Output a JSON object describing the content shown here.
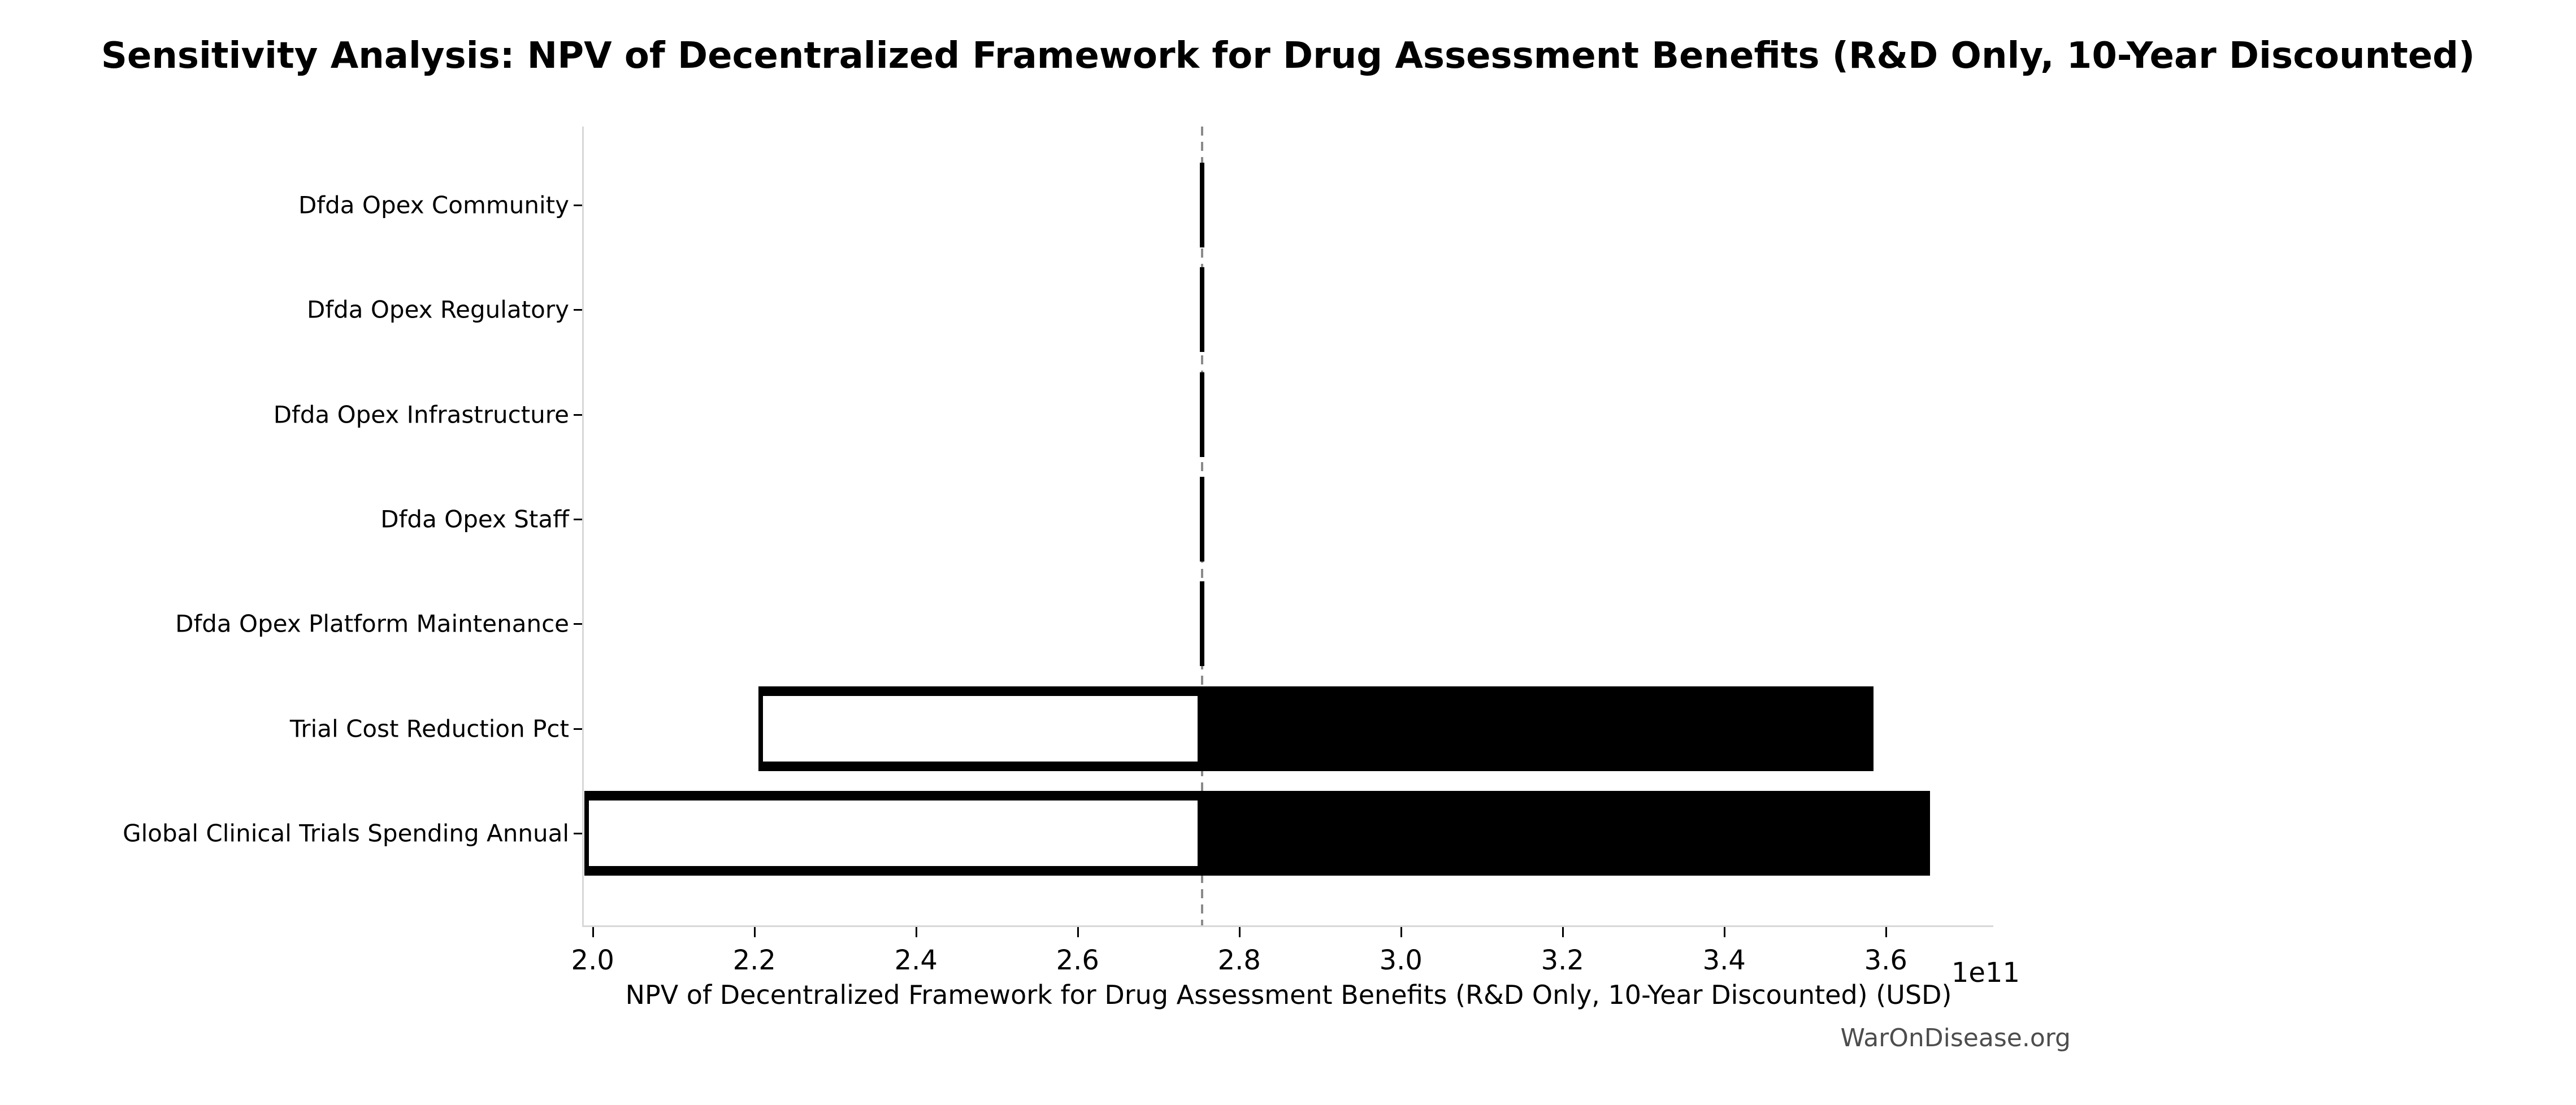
{
  "title": "Sensitivity Analysis: NPV of Decentralized Framework for Drug Assessment Benefits (R&D Only, 10-Year Discounted)",
  "footer": "WarOnDisease.org",
  "chart_data": {
    "type": "bar",
    "orientation": "horizontal",
    "subtype": "tornado-sensitivity",
    "title": "Sensitivity Analysis: NPV of Decentralized Framework for Drug Assessment Benefits (R&D Only, 10-Year Discounted)",
    "xlabel": "NPV of Decentralized Framework for Drug Assessment Benefits (R&D Only, 10-Year Discounted) (USD)",
    "x_offset_label": "1e11",
    "x_unit_multiplier": 100000000000,
    "xlim": [
      1.989,
      3.733
    ],
    "xticks": [
      2.0,
      2.2,
      2.4,
      2.6,
      2.8,
      3.0,
      3.2,
      3.4,
      3.6
    ],
    "xticklabels": [
      "2.0",
      "2.2",
      "2.4",
      "2.6",
      "2.8",
      "3.0",
      "3.2",
      "3.4",
      "3.6"
    ],
    "baseline": 2.754,
    "grid": false,
    "legend": false,
    "categories": [
      "Dfda Opex Community",
      "Dfda Opex Regulatory",
      "Dfda Opex Infrastructure",
      "Dfda Opex Staff",
      "Dfda Opex Platform Maintenance",
      "Trial Cost Reduction Pct",
      "Global Clinical Trials Spending Annual"
    ],
    "bars": [
      {
        "label": "Dfda Opex Community",
        "low": 2.751,
        "high": 2.757
      },
      {
        "label": "Dfda Opex Regulatory",
        "low": 2.751,
        "high": 2.757
      },
      {
        "label": "Dfda Opex Infrastructure",
        "low": 2.751,
        "high": 2.757
      },
      {
        "label": "Dfda Opex Staff",
        "low": 2.751,
        "high": 2.757
      },
      {
        "label": "Dfda Opex Platform Maintenance",
        "low": 2.751,
        "high": 2.757
      },
      {
        "label": "Trial Cost Reduction Pct",
        "low": 2.205,
        "high": 3.585
      },
      {
        "label": "Global Clinical Trials Spending Annual",
        "low": 1.99,
        "high": 3.655
      }
    ],
    "colors": {
      "bar_fill_high": "#000000",
      "bar_fill_low": "#ffffff",
      "bar_edge": "#000000",
      "baseline_line": "#8a8a8a",
      "spine": "#d8d8d8",
      "tick": "#000000",
      "watermark": "#4d4d4d"
    }
  }
}
